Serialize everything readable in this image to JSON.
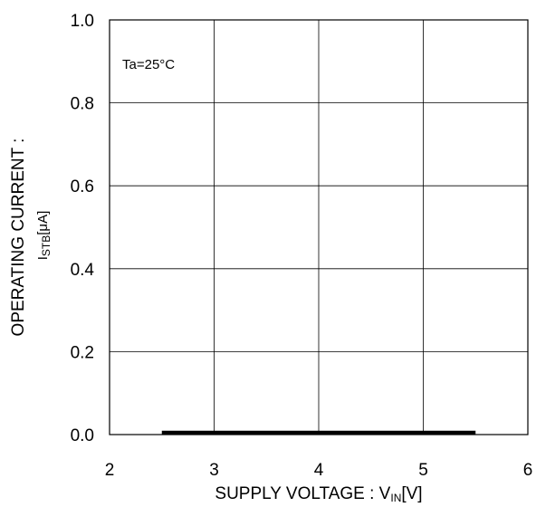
{
  "chart_data": {
    "type": "line",
    "xlim": [
      2,
      6
    ],
    "ylim": [
      0.0,
      1.0
    ],
    "x_ticks": [
      2,
      3,
      4,
      5,
      6
    ],
    "y_ticks": [
      0.0,
      0.2,
      0.4,
      0.6,
      0.8,
      1.0
    ],
    "x_tick_labels": [
      "2",
      "3",
      "4",
      "5",
      "6"
    ],
    "y_tick_labels": [
      "0.0",
      "0.2",
      "0.4",
      "0.6",
      "0.8",
      "1.0"
    ],
    "grid": true,
    "xlabel": {
      "main": "SUPPLY VOLTAGE : V",
      "sub": "IN",
      "unit": "[V]"
    },
    "ylabel": {
      "line1": "OPERATING CURRENT :",
      "line2_main": "I",
      "line2_sub": "STB",
      "line2_unit": "[μA]"
    },
    "annotation": "Ta=25°C",
    "series": [
      {
        "x": [
          2.5,
          3.0,
          3.5,
          4.0,
          4.5,
          5.0,
          5.5
        ],
        "y": [
          0.005,
          0.005,
          0.005,
          0.005,
          0.005,
          0.005,
          0.005
        ],
        "color": "#000000"
      }
    ]
  }
}
